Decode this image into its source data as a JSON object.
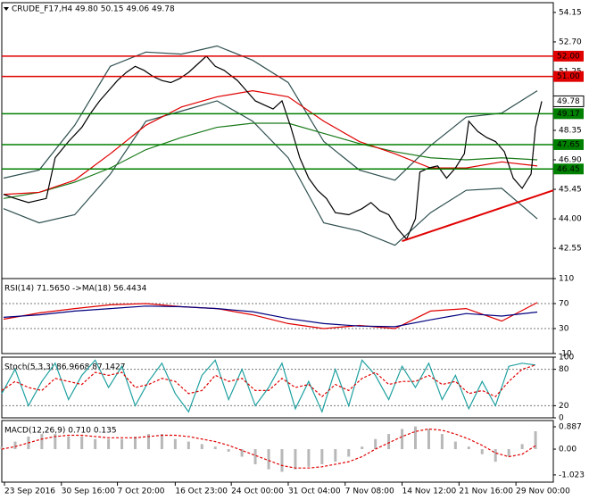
{
  "chart_data": [
    {
      "type": "line",
      "title": "CRUDE_F17,H4  49.80 50.15 49.06 49.78",
      "xlim": [
        0,
        620
      ],
      "ylim": [
        41.06,
        54.63
      ],
      "yticks": [
        54.15,
        {
          "value": 52.7,
          "label": "52.70"
        },
        51.25,
        {
          "value": 49.8,
          "label": "49.80"
        },
        48.35,
        {
          "value": 46.9,
          "label": "46.90"
        },
        45.45,
        {
          "value": 44,
          "label": "44.00"
        },
        42.55
      ],
      "grid": false,
      "series": [
        {
          "color": "#2f4f4f",
          "x": [
            2,
            42,
            82,
            122,
            162,
            202,
            242,
            282,
            322,
            362,
            402,
            442,
            482,
            522,
            562,
            602
          ],
          "values": [
            46.0,
            46.4,
            48.6,
            51.5,
            52.2,
            52.1,
            52.5,
            51.8,
            50.7,
            47.8,
            46.4,
            45.9,
            47.6,
            49.0,
            49.2,
            50.3
          ]
        },
        {
          "color": "#2f4f4f",
          "x": [
            2,
            42,
            82,
            122,
            162,
            202,
            242,
            282,
            322,
            362,
            402,
            442,
            482,
            522,
            562,
            602
          ],
          "values": [
            44.5,
            43.8,
            44.2,
            46.2,
            48.8,
            49.3,
            49.8,
            48.8,
            47.0,
            43.8,
            43.4,
            42.7,
            44.3,
            45.4,
            45.5,
            44.0
          ]
        },
        {
          "color": "#1a7a1a",
          "x": [
            2,
            42,
            82,
            122,
            162,
            202,
            242,
            282,
            322,
            362,
            402,
            442,
            482,
            522,
            562,
            602
          ],
          "values": [
            45.0,
            45.3,
            45.8,
            46.5,
            47.4,
            48.0,
            48.5,
            48.7,
            48.7,
            48.2,
            47.7,
            47.3,
            47.0,
            46.9,
            47.0,
            46.9
          ]
        },
        {
          "color": "#e00000",
          "x": [
            2,
            42,
            82,
            122,
            162,
            202,
            242,
            282,
            322,
            362,
            402,
            442,
            482,
            522,
            562,
            602
          ],
          "values": [
            45.2,
            45.3,
            45.9,
            47.2,
            48.6,
            49.5,
            50.0,
            50.3,
            50.0,
            48.8,
            47.8,
            47.2,
            46.5,
            46.5,
            46.8,
            46.6
          ]
        },
        {
          "color": "#000000",
          "x": [
            2,
            15,
            30,
            40,
            50,
            60,
            75,
            90,
            100,
            110,
            120,
            130,
            140,
            150,
            160,
            170,
            180,
            190,
            200,
            210,
            220,
            230,
            240,
            250,
            265,
            275,
            285,
            295,
            305,
            315,
            325,
            335,
            345,
            355,
            365,
            375,
            390,
            405,
            415,
            425,
            435,
            445,
            455,
            465,
            470,
            480,
            490,
            500,
            510,
            520,
            525,
            535,
            545,
            555,
            565,
            575,
            585,
            595,
            600,
            607
          ],
          "values": [
            45.2,
            45.0,
            44.8,
            44.9,
            45.0,
            47.0,
            47.8,
            48.5,
            49.2,
            49.8,
            50.3,
            50.8,
            51.2,
            51.5,
            51.3,
            51.0,
            50.8,
            50.7,
            50.9,
            51.2,
            51.6,
            52.0,
            51.5,
            51.3,
            50.8,
            50.3,
            49.8,
            49.6,
            49.4,
            49.8,
            48.5,
            47.0,
            46.0,
            45.4,
            45.0,
            44.3,
            44.2,
            44.5,
            44.8,
            44.4,
            44.2,
            43.5,
            43.0,
            44.0,
            46.3,
            46.5,
            46.6,
            46.0,
            46.5,
            47.2,
            48.8,
            48.3,
            48.0,
            47.8,
            47.3,
            46.0,
            45.5,
            46.2,
            48.5,
            49.78
          ]
        }
      ],
      "trendline": {
        "color": "#e00000",
        "x": [
          450,
          620
        ],
        "values": [
          42.9,
          45.4
        ]
      },
      "levels": [
        {
          "value": 52,
          "label": "52.00",
          "color": "#e00000"
        },
        {
          "value": 51,
          "label": "51.00",
          "color": "#e00000"
        },
        {
          "value": 49.17,
          "label": "49.17",
          "color": "#008000"
        },
        {
          "value": 47.65,
          "label": "47.65",
          "color": "#008000"
        },
        {
          "value": 46.45,
          "label": "46.45",
          "color": "#008000"
        }
      ],
      "price_label": {
        "value": 49.78,
        "label": "49.78"
      }
    },
    {
      "type": "line",
      "title": "RSI(14) 71.5650  ->MA(18) 56.4434",
      "xlim": [
        0,
        620
      ],
      "ylim": [
        -10,
        110
      ],
      "yticks": [
        110,
        70,
        30,
        -10
      ],
      "grid": true,
      "series": [
        {
          "color": "#e00000",
          "x": [
            2,
            42,
            82,
            122,
            162,
            202,
            242,
            282,
            322,
            362,
            402,
            442,
            482,
            522,
            562,
            602
          ],
          "values": [
            45,
            55,
            62,
            68,
            70,
            65,
            62,
            52,
            38,
            30,
            35,
            30,
            58,
            62,
            42,
            71.6
          ]
        },
        {
          "color": "#000080",
          "x": [
            2,
            42,
            82,
            122,
            162,
            202,
            242,
            282,
            322,
            362,
            402,
            442,
            482,
            522,
            562,
            602
          ],
          "values": [
            48,
            52,
            58,
            62,
            66,
            65,
            62,
            57,
            46,
            38,
            34,
            33,
            44,
            54,
            50,
            56.4
          ]
        }
      ]
    },
    {
      "type": "line",
      "title": "Stoch(5,3,3) 86.9668 87.1427",
      "xlim": [
        0,
        620
      ],
      "ylim": [
        0,
        100
      ],
      "yticks": [
        100,
        80,
        20,
        0
      ],
      "grid": true,
      "series": [
        {
          "color": "#20a0a0",
          "x": [
            0,
            15,
            30,
            45,
            60,
            75,
            90,
            105,
            120,
            135,
            150,
            165,
            180,
            195,
            210,
            225,
            240,
            255,
            270,
            285,
            300,
            315,
            330,
            345,
            360,
            375,
            390,
            405,
            420,
            435,
            450,
            465,
            480,
            495,
            510,
            525,
            540,
            555,
            570,
            585,
            600
          ],
          "values": [
            40,
            80,
            20,
            60,
            90,
            30,
            70,
            95,
            50,
            85,
            20,
            60,
            90,
            40,
            10,
            70,
            95,
            30,
            80,
            20,
            50,
            90,
            15,
            60,
            10,
            80,
            20,
            95,
            70,
            30,
            85,
            50,
            90,
            30,
            70,
            15,
            60,
            20,
            85,
            90,
            87
          ]
        },
        {
          "color": "#e00000",
          "dashed": true,
          "x": [
            0,
            15,
            30,
            45,
            60,
            75,
            90,
            105,
            120,
            135,
            150,
            165,
            180,
            195,
            210,
            225,
            240,
            255,
            270,
            285,
            300,
            315,
            330,
            345,
            360,
            375,
            390,
            405,
            420,
            435,
            450,
            465,
            480,
            495,
            510,
            525,
            540,
            555,
            570,
            585,
            600
          ],
          "values": [
            45,
            60,
            50,
            45,
            65,
            60,
            55,
            75,
            70,
            75,
            50,
            55,
            65,
            60,
            40,
            45,
            70,
            60,
            65,
            45,
            45,
            65,
            50,
            55,
            35,
            55,
            45,
            65,
            75,
            55,
            60,
            60,
            70,
            55,
            60,
            40,
            45,
            35,
            60,
            80,
            87.1
          ]
        }
      ]
    },
    {
      "type": "bar",
      "title": "MACD(12,26,9) 0.710 0.135",
      "xlim": [
        0,
        620
      ],
      "ylim": [
        -1.31,
        1.135
      ],
      "yticks": [
        0.887,
        {
          "value": 0,
          "label": "0.00"
        },
        -1.023
      ],
      "grid": false,
      "xticks": [
        {
          "value": 3,
          "label": "23 Sep 2016"
        },
        {
          "value": 67,
          "label": "30 Sep 16:00"
        },
        {
          "value": 130,
          "label": "7 Oct 20:00"
        },
        {
          "value": 195,
          "label": "16 Oct 23:00"
        },
        {
          "value": 258,
          "label": "24 Oct 00:00"
        },
        {
          "value": 322,
          "label": "31 Oct 04:00"
        },
        {
          "value": 386,
          "label": "7 Nov 08:00"
        },
        {
          "value": 450,
          "label": "14 Nov 12:00"
        },
        {
          "value": 514,
          "label": "21 Nov 16:00"
        },
        {
          "value": 578,
          "label": "29 Nov 00:00"
        }
      ],
      "series": [
        {
          "type": "bar",
          "color": "#b8b8b8",
          "x": [
            0,
            15,
            30,
            45,
            60,
            75,
            90,
            105,
            120,
            135,
            150,
            165,
            180,
            195,
            210,
            225,
            240,
            255,
            270,
            285,
            300,
            315,
            330,
            345,
            360,
            375,
            390,
            405,
            420,
            435,
            450,
            465,
            480,
            495,
            510,
            525,
            540,
            555,
            570,
            585,
            600
          ],
          "values": [
            0.1,
            0.3,
            0.5,
            0.6,
            0.6,
            0.5,
            0.5,
            0.4,
            0.4,
            0.4,
            0.5,
            0.6,
            0.6,
            0.4,
            0.3,
            0.2,
            0.1,
            -0.1,
            -0.3,
            -0.6,
            -0.8,
            -0.9,
            -0.8,
            -0.7,
            -0.6,
            -0.5,
            -0.3,
            0.1,
            0.4,
            0.6,
            0.8,
            0.9,
            0.8,
            0.6,
            0.3,
            0.1,
            -0.2,
            -0.5,
            -0.3,
            0.2,
            0.71
          ]
        },
        {
          "type": "line",
          "color": "#e00000",
          "dashed": true,
          "x": [
            0,
            15,
            30,
            45,
            60,
            75,
            90,
            105,
            120,
            135,
            150,
            165,
            180,
            195,
            210,
            225,
            240,
            255,
            270,
            285,
            300,
            315,
            330,
            345,
            360,
            375,
            390,
            405,
            420,
            435,
            450,
            465,
            480,
            495,
            510,
            525,
            540,
            555,
            570,
            585,
            600
          ],
          "values": [
            0.0,
            0.1,
            0.25,
            0.4,
            0.5,
            0.55,
            0.55,
            0.5,
            0.45,
            0.45,
            0.45,
            0.5,
            0.55,
            0.55,
            0.5,
            0.4,
            0.3,
            0.15,
            -0.05,
            -0.25,
            -0.45,
            -0.65,
            -0.75,
            -0.75,
            -0.7,
            -0.6,
            -0.5,
            -0.3,
            0.0,
            0.25,
            0.5,
            0.7,
            0.8,
            0.75,
            0.6,
            0.4,
            0.15,
            -0.15,
            -0.3,
            -0.2,
            0.135
          ]
        }
      ]
    }
  ]
}
